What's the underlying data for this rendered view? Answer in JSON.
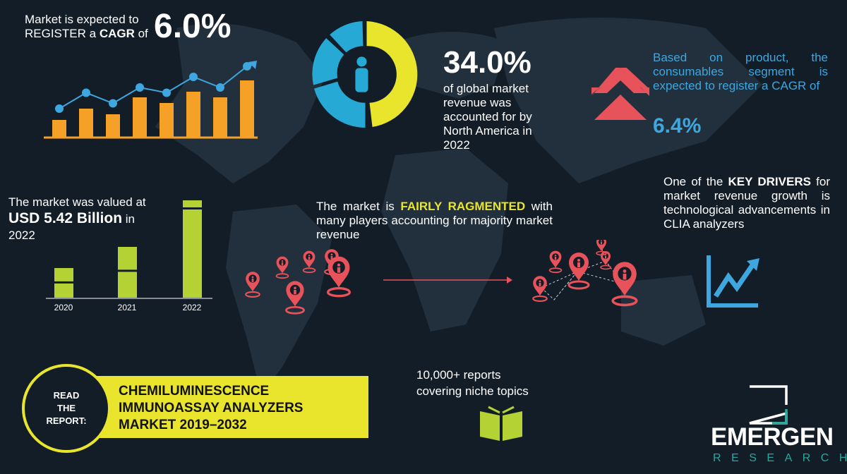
{
  "cagr": {
    "line1": "Market is expected to",
    "line2_pre": "REGISTER a ",
    "line2_bold": "CAGR",
    "line2_post": " of",
    "value": "6.0%"
  },
  "trend_chart": {
    "bars": [
      3,
      5,
      4,
      7,
      6,
      8,
      7,
      10
    ],
    "line": [
      4,
      7,
      5,
      8,
      7,
      10,
      8,
      12
    ]
  },
  "share": {
    "value": "34.0%",
    "fraction": 0.34,
    "text": [
      "of global market",
      "revenue was",
      "accounted for by",
      "North America in",
      "2022"
    ]
  },
  "segment": {
    "text": "Based on product, the consumables segment is expected to register a CAGR of",
    "value": "6.4%"
  },
  "valuation": {
    "line1": "The market was valued at",
    "value": "USD 5.42 Billion",
    "in": " in",
    "year": "2022",
    "bars": [
      {
        "label": "2020",
        "h": 42
      },
      {
        "label": "2021",
        "h": 72
      },
      {
        "label": "2022",
        "h": 138
      }
    ]
  },
  "fragmented": {
    "pre": "The market is ",
    "bold": "FAIRLY RAGMENTED",
    "post": " with many players accounting for majority market revenue"
  },
  "drivers": {
    "pre": "One of the ",
    "bold": "KEY DRIVERS",
    "post": " for market revenue growth is technological advancements in CLIA  analyzers"
  },
  "report": {
    "circle": [
      "READ",
      "THE",
      "REPORT:"
    ],
    "title": [
      "CHEMILUMINESCENCE",
      "IMMUNOASSAY ANALYZERS",
      "MARKET 2019–2032"
    ]
  },
  "reports_count": {
    "line1": "10,000+ reports",
    "line2": "covering niche topics"
  },
  "logo": {
    "name": "EMERGEN",
    "sub": "RESEARCH"
  },
  "colors": {
    "bg": "#121d28",
    "orange": "#f5a128",
    "blue": "#3ea7df",
    "yellow": "#e9e42c",
    "red": "#e8525b",
    "green": "#b4d233"
  }
}
